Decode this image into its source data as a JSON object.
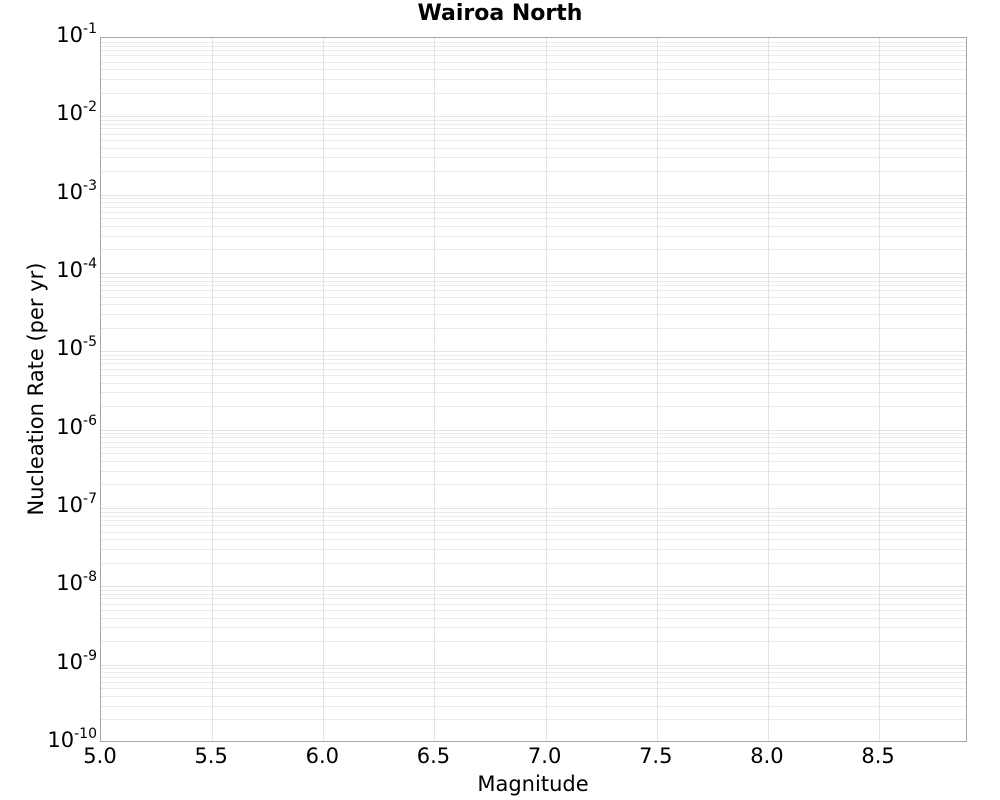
{
  "chart_data": {
    "type": "line",
    "title": "Wairoa North",
    "xlabel": "Magnitude",
    "ylabel": "Nucleation Rate (per yr)",
    "xlim": [
      5.0,
      8.9
    ],
    "ylim": [
      1e-10,
      0.1
    ],
    "yscale": "log",
    "x_ticks": [
      {
        "value": 5.0,
        "label": "5.0"
      },
      {
        "value": 5.5,
        "label": "5.5"
      },
      {
        "value": 6.0,
        "label": "6.0"
      },
      {
        "value": 6.5,
        "label": "6.5"
      },
      {
        "value": 7.0,
        "label": "7.0"
      },
      {
        "value": 7.5,
        "label": "7.5"
      },
      {
        "value": 8.0,
        "label": "8.0"
      },
      {
        "value": 8.5,
        "label": "8.5"
      }
    ],
    "y_ticks": [
      {
        "value": 0.1,
        "base": "10",
        "exponent": "-1"
      },
      {
        "value": 0.01,
        "base": "10",
        "exponent": "-2"
      },
      {
        "value": 0.001,
        "base": "10",
        "exponent": "-3"
      },
      {
        "value": 0.0001,
        "base": "10",
        "exponent": "-4"
      },
      {
        "value": 1e-05,
        "base": "10",
        "exponent": "-5"
      },
      {
        "value": 1e-06,
        "base": "10",
        "exponent": "-6"
      },
      {
        "value": 1e-07,
        "base": "10",
        "exponent": "-7"
      },
      {
        "value": 1e-08,
        "base": "10",
        "exponent": "-8"
      },
      {
        "value": 1e-09,
        "base": "10",
        "exponent": "-9"
      },
      {
        "value": 1e-10,
        "base": "10",
        "exponent": "-10"
      }
    ],
    "grid": {
      "horizontal_major": true,
      "horizontal_minor": true,
      "vertical_major": true,
      "vertical_minor": false,
      "major_color": "#e3e3e3",
      "minor_color": "#ebebeb"
    },
    "spine_color": "#a6a6a6",
    "background_color": "#ffffff",
    "legend": "none",
    "series": []
  }
}
